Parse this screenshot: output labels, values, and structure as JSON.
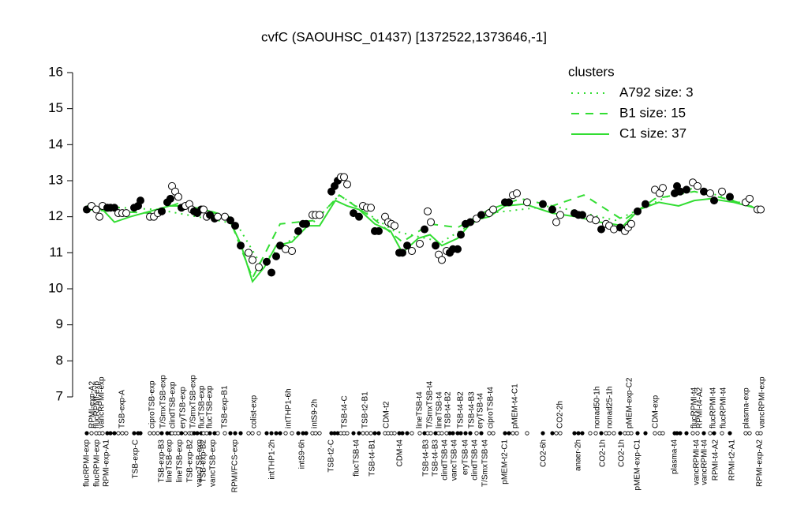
{
  "chart_data": {
    "type": "scatter",
    "title": "cvfC (SAOUHSC_01437) [1372522,1373646,-1]",
    "ylim": [
      7,
      16
    ],
    "yticks": [
      7,
      8,
      9,
      10,
      11,
      12,
      13,
      14,
      15,
      16
    ],
    "xlim": [
      0,
      880
    ],
    "x": [
      10,
      16,
      22,
      26,
      30,
      36,
      40,
      45,
      50,
      55,
      60,
      70,
      75,
      78,
      90,
      95,
      100,
      105,
      112,
      116,
      118,
      122,
      126,
      130,
      135,
      140,
      143,
      146,
      150,
      155,
      158,
      162,
      166,
      172,
      176,
      185,
      192,
      198,
      205,
      215,
      220,
      228,
      238,
      244,
      250,
      255,
      262,
      270,
      278,
      284,
      288,
      296,
      300,
      305,
      320,
      324,
      328,
      332,
      336,
      340,
      348,
      355,
      360,
      365,
      370,
      375,
      380,
      388,
      392,
      396,
      400,
      406,
      410,
      416,
      422,
      432,
      438,
      442,
      446,
      452,
      456,
      460,
      466,
      470,
      474,
      480,
      484,
      490,
      496,
      504,
      510,
      520,
      525,
      540,
      545,
      550,
      555,
      568,
      588,
      600,
      605,
      610,
      628,
      633,
      638,
      648,
      655,
      662,
      668,
      672,
      678,
      686,
      692,
      696,
      700,
      708,
      718,
      730,
      736,
      740,
      755,
      758,
      762,
      770,
      778,
      784,
      792,
      800,
      805,
      815,
      825,
      845,
      850,
      860,
      864
    ],
    "values": [
      12.2,
      12.3,
      12.2,
      12.0,
      12.3,
      12.25,
      12.25,
      12.25,
      12.1,
      12.1,
      12.1,
      12.25,
      12.3,
      12.45,
      12.0,
      12.0,
      12.1,
      12.15,
      12.4,
      12.5,
      12.85,
      12.7,
      12.55,
      12.25,
      12.3,
      12.35,
      12.2,
      12.15,
      12.1,
      12.2,
      12.2,
      12.0,
      12.05,
      11.95,
      12.0,
      12.0,
      11.9,
      11.75,
      11.2,
      11.0,
      10.8,
      10.6,
      10.75,
      10.45,
      10.9,
      11.2,
      11.1,
      11.05,
      11.6,
      11.8,
      11.8,
      12.05,
      12.05,
      12.05,
      12.7,
      12.85,
      13.0,
      13.1,
      13.1,
      12.9,
      12.1,
      12.0,
      12.3,
      12.25,
      12.25,
      11.6,
      11.6,
      12.0,
      11.85,
      11.8,
      11.75,
      11.0,
      11.0,
      11.2,
      11.05,
      11.25,
      11.65,
      12.15,
      11.85,
      11.2,
      10.95,
      10.8,
      11.05,
      11.0,
      11.1,
      11.1,
      11.5,
      11.8,
      11.85,
      11.95,
      12.05,
      12.1,
      12.2,
      12.4,
      12.4,
      12.6,
      12.65,
      12.4,
      12.35,
      12.2,
      11.85,
      12.05,
      12.1,
      12.05,
      12.05,
      11.95,
      11.9,
      11.65,
      11.8,
      11.75,
      11.65,
      11.7,
      11.6,
      11.7,
      11.8,
      12.15,
      12.35,
      12.75,
      12.65,
      12.8,
      12.65,
      12.85,
      12.7,
      12.75,
      12.95,
      12.85,
      12.7,
      12.65,
      12.45,
      12.7,
      12.55,
      12.4,
      12.5,
      12.2,
      12.2
    ],
    "filled": [
      true,
      false,
      false,
      false,
      false,
      true,
      true,
      true,
      false,
      false,
      false,
      true,
      true,
      true,
      false,
      false,
      false,
      true,
      true,
      true,
      false,
      false,
      false,
      true,
      false,
      false,
      false,
      true,
      true,
      true,
      false,
      false,
      true,
      true,
      false,
      false,
      true,
      true,
      true,
      false,
      false,
      false,
      true,
      true,
      true,
      true,
      false,
      false,
      true,
      true,
      true,
      false,
      false,
      false,
      true,
      true,
      true,
      false,
      false,
      false,
      true,
      true,
      false,
      false,
      false,
      true,
      true,
      false,
      false,
      false,
      false,
      true,
      true,
      true,
      false,
      false,
      true,
      false,
      false,
      true,
      false,
      false,
      false,
      true,
      true,
      true,
      true,
      true,
      true,
      false,
      true,
      false,
      false,
      true,
      true,
      false,
      false,
      false,
      true,
      true,
      false,
      false,
      true,
      true,
      true,
      false,
      false,
      true,
      false,
      false,
      false,
      true,
      false,
      false,
      false,
      true,
      true,
      false,
      false,
      false,
      true,
      true,
      true,
      true,
      false,
      false,
      true,
      false,
      true,
      false,
      true,
      false,
      false,
      false,
      false
    ],
    "series": [
      {
        "name": "A792 size: 3",
        "style": "dotted",
        "color": "#33dd33",
        "x": [
          10,
          100,
          200,
          230,
          300,
          330,
          400,
          460,
          520,
          600,
          680,
          750,
          780,
          865
        ],
        "values": [
          12.3,
          12.2,
          11.8,
          10.7,
          11.9,
          12.6,
          11.6,
          11.3,
          12.1,
          12.3,
          11.9,
          12.6,
          12.8,
          12.2
        ]
      },
      {
        "name": "B1 size: 15",
        "style": "dashed",
        "color": "#33dd33",
        "x": [
          10,
          45,
          90,
          130,
          190,
          220,
          255,
          300,
          330,
          370,
          410,
          445,
          480,
          520,
          560,
          600,
          640,
          690,
          730,
          780,
          820,
          865
        ],
        "values": [
          12.2,
          12.15,
          12.1,
          12.4,
          12.0,
          10.3,
          11.8,
          11.9,
          12.6,
          12.0,
          11.3,
          11.8,
          11.7,
          12.2,
          12.5,
          12.3,
          12.6,
          11.9,
          12.5,
          12.7,
          12.5,
          12.2
        ]
      },
      {
        "name": "C1 size: 37",
        "style": "solid",
        "color": "#33dd33",
        "x": [
          10,
          30,
          45,
          65,
          90,
          115,
          135,
          160,
          190,
          205,
          220,
          235,
          250,
          270,
          290,
          305,
          325,
          340,
          355,
          375,
          395,
          410,
          430,
          445,
          460,
          480,
          500,
          520,
          540,
          565,
          600,
          630,
          660,
          690,
          710,
          735,
          760,
          780,
          800,
          830,
          865
        ],
        "values": [
          12.2,
          12.2,
          11.85,
          12.0,
          12.15,
          12.3,
          12.3,
          12.2,
          11.95,
          11.25,
          10.2,
          10.6,
          11.2,
          11.3,
          11.75,
          11.75,
          12.45,
          12.3,
          12.2,
          11.8,
          11.6,
          11.0,
          11.4,
          11.5,
          11.2,
          11.4,
          11.9,
          12.0,
          12.3,
          12.35,
          12.1,
          12.0,
          11.85,
          11.75,
          12.2,
          12.4,
          12.3,
          12.45,
          12.5,
          12.4,
          12.2
        ]
      }
    ],
    "legend": {
      "title": "clusters",
      "color": "#33dd33"
    },
    "top_labels": [
      {
        "x": 17,
        "text": "RPMI-exp-A2"
      },
      {
        "x": 23,
        "text": "flucRPMI-exp"
      },
      {
        "x": 29,
        "text": "vancRPMI-exp"
      },
      {
        "x": 55,
        "text": "TSB-exp-A"
      },
      {
        "x": 93,
        "text": "ciproTSB-exp"
      },
      {
        "x": 107,
        "text": "T/SmxTSB-exp"
      },
      {
        "x": 119,
        "text": "clindTSB-exp"
      },
      {
        "x": 132,
        "text": "eryTSB-exp"
      },
      {
        "x": 145,
        "text": "T/SmxTSB-exp"
      },
      {
        "x": 156,
        "text": "flucTSB-exp"
      },
      {
        "x": 166,
        "text": "flucTSB-exp"
      },
      {
        "x": 185,
        "text": "TSB-exp-B1"
      },
      {
        "x": 222,
        "text": "colist-exp"
      },
      {
        "x": 266,
        "text": "intTHP1-6h"
      },
      {
        "x": 299,
        "text": "intS9-2h"
      },
      {
        "x": 337,
        "text": "TSB-t4-C"
      },
      {
        "x": 363,
        "text": "TSB-t2-B1"
      },
      {
        "x": 390,
        "text": "CDM-t2"
      },
      {
        "x": 432,
        "text": "lineTSB-t4"
      },
      {
        "x": 445,
        "text": "T/SmxTSB-t4"
      },
      {
        "x": 457,
        "text": "lineTSB-t4"
      },
      {
        "x": 468,
        "text": "TSB-t4-B2"
      },
      {
        "x": 484,
        "text": "TSB-t4-B2"
      },
      {
        "x": 498,
        "text": "TSB-t4-B3"
      },
      {
        "x": 509,
        "text": "eryTSB-t4"
      },
      {
        "x": 522,
        "text": "ciproTSB-t4"
      },
      {
        "x": 553,
        "text": "pMEM-t4-C1"
      },
      {
        "x": 610,
        "text": "CO2-2h"
      },
      {
        "x": 657,
        "text": "nonad50-1h"
      },
      {
        "x": 673,
        "text": "nonad25-1h"
      },
      {
        "x": 698,
        "text": "pMEM-exp-C2"
      },
      {
        "x": 731,
        "text": "CDM-exp"
      },
      {
        "x": 780,
        "text": "flucRPMI-t4"
      },
      {
        "x": 787,
        "text": "RPMI-t4-A2"
      },
      {
        "x": 804,
        "text": "flucRPMI-t4"
      },
      {
        "x": 817,
        "text": "flucRPMI-t4"
      },
      {
        "x": 846,
        "text": "plasma-exp"
      },
      {
        "x": 866,
        "text": "vancRPMI-exp"
      }
    ],
    "bottom_labels": [
      {
        "x": 10,
        "text": "flucRPMI-exp"
      },
      {
        "x": 23,
        "text": "flucRPMI-exp"
      },
      {
        "x": 35,
        "text": "RPMI-exp-A1"
      },
      {
        "x": 72,
        "text": "TSB-exp-C"
      },
      {
        "x": 105,
        "text": "TSB-exp-B3"
      },
      {
        "x": 115,
        "text": "lineTSB-exp"
      },
      {
        "x": 128,
        "text": "lineTSB-exp"
      },
      {
        "x": 141,
        "text": "TSB-exp-B2"
      },
      {
        "x": 153,
        "text": "vancTSB-exp"
      },
      {
        "x": 158,
        "text": "TSB-exp-B2"
      },
      {
        "x": 170,
        "text": "vancTSB-exp"
      },
      {
        "x": 198,
        "text": "RPMI/FCS-exp"
      },
      {
        "x": 245,
        "text": "intTHP1-2h"
      },
      {
        "x": 283,
        "text": "intS9-6h"
      },
      {
        "x": 320,
        "text": "TSB-t2-C"
      },
      {
        "x": 352,
        "text": "flucTSB-t4"
      },
      {
        "x": 372,
        "text": "TSB-t4-B1"
      },
      {
        "x": 407,
        "text": "CDM-t4"
      },
      {
        "x": 440,
        "text": "TSB-t4-B3"
      },
      {
        "x": 452,
        "text": "TSB-t4-B3"
      },
      {
        "x": 464,
        "text": "clindTSB-t4"
      },
      {
        "x": 476,
        "text": "vancTSB-t4"
      },
      {
        "x": 490,
        "text": "eryTSB-t4"
      },
      {
        "x": 502,
        "text": "clindTSB-t4"
      },
      {
        "x": 515,
        "text": "T/SmxTSB-t4"
      },
      {
        "x": 540,
        "text": "pMEM-t2-C1"
      },
      {
        "x": 589,
        "text": "CO2-6h"
      },
      {
        "x": 633,
        "text": "anaer-2h"
      },
      {
        "x": 664,
        "text": "CO2-1h"
      },
      {
        "x": 688,
        "text": "CO2-1h"
      },
      {
        "x": 708,
        "text": "pMEM-exp-C1"
      },
      {
        "x": 755,
        "text": "plasma-t4"
      },
      {
        "x": 783,
        "text": "vancRPMI-t4"
      },
      {
        "x": 793,
        "text": "vancRPMI-t4"
      },
      {
        "x": 807,
        "text": "RPMI-t4-A2"
      },
      {
        "x": 828,
        "text": "RPMI-t2-A1"
      },
      {
        "x": 863,
        "text": "RPMI-exp-A2"
      }
    ]
  }
}
